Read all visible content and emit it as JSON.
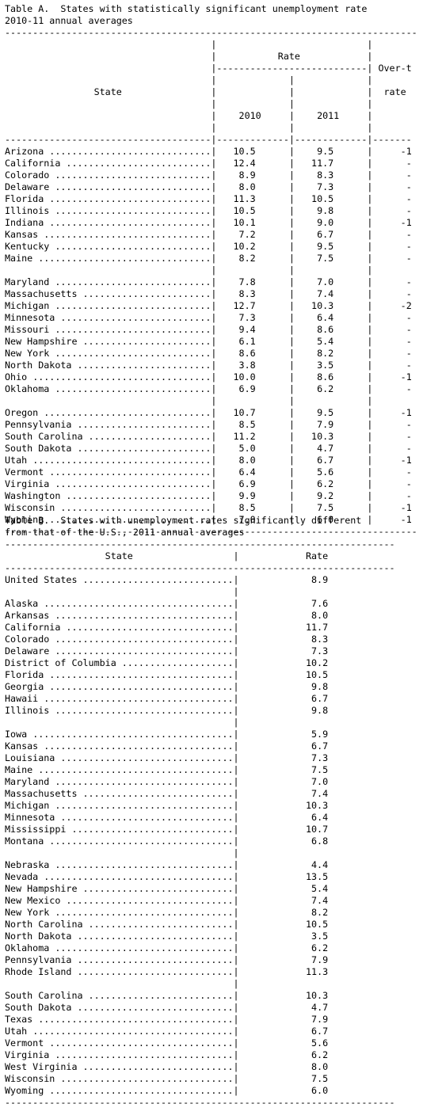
{
  "table_a": {
    "title_lines": [
      "Table A.  States with statistically significant unemployment rate",
      "2010-11 annual averages"
    ],
    "header": {
      "state": "State",
      "rate": "Rate",
      "year1": "2010",
      "year2": "2011",
      "change_line1": "Over-t",
      "change_line2": "rate"
    },
    "groups": [
      [
        {
          "state": "Arizona",
          "y2010": "10.5",
          "y2011": "9.5",
          "change": "-1"
        },
        {
          "state": "California",
          "y2010": "12.4",
          "y2011": "11.7",
          "change": "-"
        },
        {
          "state": "Colorado",
          "y2010": "8.9",
          "y2011": "8.3",
          "change": "-"
        },
        {
          "state": "Delaware",
          "y2010": "8.0",
          "y2011": "7.3",
          "change": "-"
        },
        {
          "state": "Florida",
          "y2010": "11.3",
          "y2011": "10.5",
          "change": "-"
        },
        {
          "state": "Illinois",
          "y2010": "10.5",
          "y2011": "9.8",
          "change": "-"
        },
        {
          "state": "Indiana",
          "y2010": "10.1",
          "y2011": "9.0",
          "change": "-1"
        },
        {
          "state": "Kansas",
          "y2010": "7.2",
          "y2011": "6.7",
          "change": "-"
        },
        {
          "state": "Kentucky",
          "y2010": "10.2",
          "y2011": "9.5",
          "change": "-"
        },
        {
          "state": "Maine",
          "y2010": "8.2",
          "y2011": "7.5",
          "change": "-"
        }
      ],
      [
        {
          "state": "Maryland",
          "y2010": "7.8",
          "y2011": "7.0",
          "change": "-"
        },
        {
          "state": "Massachusetts",
          "y2010": "8.3",
          "y2011": "7.4",
          "change": "-"
        },
        {
          "state": "Michigan",
          "y2010": "12.7",
          "y2011": "10.3",
          "change": "-2"
        },
        {
          "state": "Minnesota",
          "y2010": "7.3",
          "y2011": "6.4",
          "change": "-"
        },
        {
          "state": "Missouri",
          "y2010": "9.4",
          "y2011": "8.6",
          "change": "-"
        },
        {
          "state": "New Hampshire",
          "y2010": "6.1",
          "y2011": "5.4",
          "change": "-"
        },
        {
          "state": "New York",
          "y2010": "8.6",
          "y2011": "8.2",
          "change": "-"
        },
        {
          "state": "North Dakota",
          "y2010": "3.8",
          "y2011": "3.5",
          "change": "-"
        },
        {
          "state": "Ohio",
          "y2010": "10.0",
          "y2011": "8.6",
          "change": "-1"
        },
        {
          "state": "Oklahoma",
          "y2010": "6.9",
          "y2011": "6.2",
          "change": "-"
        }
      ],
      [
        {
          "state": "Oregon",
          "y2010": "10.7",
          "y2011": "9.5",
          "change": "-1"
        },
        {
          "state": "Pennsylvania",
          "y2010": "8.5",
          "y2011": "7.9",
          "change": "-"
        },
        {
          "state": "South Carolina",
          "y2010": "11.2",
          "y2011": "10.3",
          "change": "-"
        },
        {
          "state": "South Dakota",
          "y2010": "5.0",
          "y2011": "4.7",
          "change": "-"
        },
        {
          "state": "Utah",
          "y2010": "8.0",
          "y2011": "6.7",
          "change": "-1"
        },
        {
          "state": "Vermont",
          "y2010": "6.4",
          "y2011": "5.6",
          "change": "-"
        },
        {
          "state": "Virginia",
          "y2010": "6.9",
          "y2011": "6.2",
          "change": "-"
        },
        {
          "state": "Washington",
          "y2010": "9.9",
          "y2011": "9.2",
          "change": "-"
        },
        {
          "state": "Wisconsin",
          "y2010": "8.5",
          "y2011": "7.5",
          "change": "-1"
        },
        {
          "state": "Wyoming",
          "y2010": "7.0",
          "y2011": "6.0",
          "change": "-1"
        }
      ]
    ]
  },
  "table_b": {
    "title_lines": [
      "Table B.  States with unemployment rates significantly different",
      "from that of the U.S., 2011 annual averages"
    ],
    "header": {
      "state": "State",
      "rate": "Rate"
    },
    "groups": [
      [
        {
          "state": "United States",
          "rate": "8.9"
        }
      ],
      [
        {
          "state": "Alaska",
          "rate": "7.6"
        },
        {
          "state": "Arkansas",
          "rate": "8.0"
        },
        {
          "state": "California",
          "rate": "11.7"
        },
        {
          "state": "Colorado",
          "rate": "8.3"
        },
        {
          "state": "Delaware",
          "rate": "7.3"
        },
        {
          "state": "District of Columbia",
          "rate": "10.2"
        },
        {
          "state": "Florida",
          "rate": "10.5"
        },
        {
          "state": "Georgia",
          "rate": "9.8"
        },
        {
          "state": "Hawaii",
          "rate": "6.7"
        },
        {
          "state": "Illinois",
          "rate": "9.8"
        }
      ],
      [
        {
          "state": "Iowa",
          "rate": "5.9"
        },
        {
          "state": "Kansas",
          "rate": "6.7"
        },
        {
          "state": "Louisiana",
          "rate": "7.3"
        },
        {
          "state": "Maine",
          "rate": "7.5"
        },
        {
          "state": "Maryland",
          "rate": "7.0"
        },
        {
          "state": "Massachusetts",
          "rate": "7.4"
        },
        {
          "state": "Michigan",
          "rate": "10.3"
        },
        {
          "state": "Minnesota",
          "rate": "6.4"
        },
        {
          "state": "Mississippi",
          "rate": "10.7"
        },
        {
          "state": "Montana",
          "rate": "6.8"
        }
      ],
      [
        {
          "state": "Nebraska",
          "rate": "4.4"
        },
        {
          "state": "Nevada",
          "rate": "13.5"
        },
        {
          "state": "New Hampshire",
          "rate": "5.4"
        },
        {
          "state": "New Mexico",
          "rate": "7.4"
        },
        {
          "state": "New York",
          "rate": "8.2"
        },
        {
          "state": "North Carolina",
          "rate": "10.5"
        },
        {
          "state": "North Dakota",
          "rate": "3.5"
        },
        {
          "state": "Oklahoma",
          "rate": "6.2"
        },
        {
          "state": "Pennsylvania",
          "rate": "7.9"
        },
        {
          "state": "Rhode Island",
          "rate": "11.3"
        }
      ],
      [
        {
          "state": "South Carolina",
          "rate": "10.3"
        },
        {
          "state": "South Dakota",
          "rate": "4.7"
        },
        {
          "state": "Texas",
          "rate": "7.9"
        },
        {
          "state": "Utah",
          "rate": "6.7"
        },
        {
          "state": "Vermont",
          "rate": "5.6"
        },
        {
          "state": "Virginia",
          "rate": "6.2"
        },
        {
          "state": "West Virginia",
          "rate": "8.0"
        },
        {
          "state": "Wisconsin",
          "rate": "7.5"
        },
        {
          "state": "Wyoming",
          "rate": "6.0"
        }
      ]
    ]
  }
}
